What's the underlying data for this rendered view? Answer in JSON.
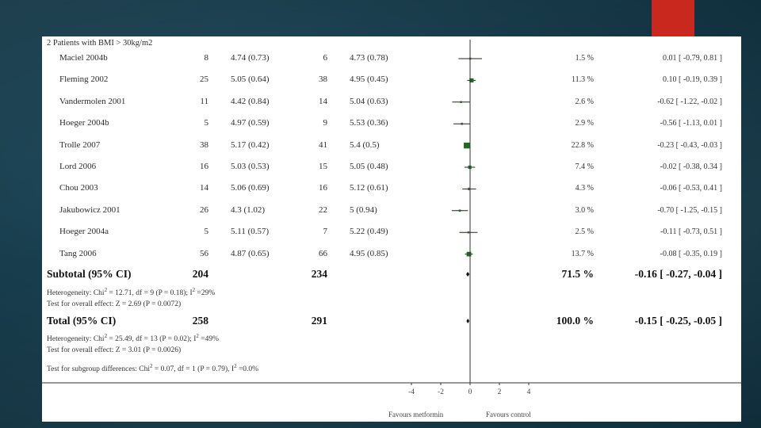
{
  "slide": {
    "subgroup_heading": "2 Patients with BMI > 30kg/m2",
    "studies": [
      {
        "name": "Maciel 2004b",
        "n1": "8",
        "ms1": "4.74 (0.73)",
        "n2": "6",
        "ms2": "4.73 (0.78)",
        "weight": "1.5 %",
        "ci_text": "0.01 [ -0.79, 0.81 ]",
        "est": 0.01,
        "lo": -0.79,
        "hi": 0.81
      },
      {
        "name": "Fleming 2002",
        "n1": "25",
        "ms1": "5.05 (0.64)",
        "n2": "38",
        "ms2": "4.95 (0.45)",
        "weight": "11.3 %",
        "ci_text": "0.10 [ -0.19, 0.39 ]",
        "est": 0.1,
        "lo": -0.19,
        "hi": 0.39
      },
      {
        "name": "Vandermolen 2001",
        "n1": "11",
        "ms1": "4.42 (0.84)",
        "n2": "14",
        "ms2": "5.04 (0.63)",
        "weight": "2.6 %",
        "ci_text": "-0.62 [ -1.22, -0.02 ]",
        "est": -0.62,
        "lo": -1.22,
        "hi": -0.02
      },
      {
        "name": "Hoeger 2004b",
        "n1": "5",
        "ms1": "4.97 (0.59)",
        "n2": "9",
        "ms2": "5.53 (0.36)",
        "weight": "2.9 %",
        "ci_text": "-0.56 [ -1.13, 0.01 ]",
        "est": -0.56,
        "lo": -1.13,
        "hi": 0.01
      },
      {
        "name": "Trolle 2007",
        "n1": "38",
        "ms1": "5.17 (0.42)",
        "n2": "41",
        "ms2": "5.4 (0.5)",
        "weight": "22.8 %",
        "ci_text": "-0.23 [ -0.43, -0.03 ]",
        "est": -0.23,
        "lo": -0.43,
        "hi": -0.03
      },
      {
        "name": "Lord 2006",
        "n1": "16",
        "ms1": "5.03 (0.53)",
        "n2": "15",
        "ms2": "5.05 (0.48)",
        "weight": "7.4 %",
        "ci_text": "-0.02 [ -0.38, 0.34 ]",
        "est": -0.02,
        "lo": -0.38,
        "hi": 0.34
      },
      {
        "name": "Chou 2003",
        "n1": "14",
        "ms1": "5.06 (0.69)",
        "n2": "16",
        "ms2": "5.12 (0.61)",
        "weight": "4.3 %",
        "ci_text": "-0.06 [ -0.53, 0.41 ]",
        "est": -0.06,
        "lo": -0.53,
        "hi": 0.41
      },
      {
        "name": "Jakubowicz 2001",
        "n1": "26",
        "ms1": "4.3 (1.02)",
        "n2": "22",
        "ms2": "5 (0.94)",
        "weight": "3.0 %",
        "ci_text": "-0.70 [ -1.25, -0.15 ]",
        "est": -0.7,
        "lo": -1.25,
        "hi": -0.15
      },
      {
        "name": "Hoeger 2004a",
        "n1": "5",
        "ms1": "5.11 (0.57)",
        "n2": "7",
        "ms2": "5.22 (0.49)",
        "weight": "2.5 %",
        "ci_text": "-0.11 [ -0.73, 0.51 ]",
        "est": -0.11,
        "lo": -0.73,
        "hi": 0.51
      },
      {
        "name": "Tang 2006",
        "n1": "56",
        "ms1": "4.87 (0.65)",
        "n2": "66",
        "ms2": "4.95 (0.85)",
        "weight": "13.7 %",
        "ci_text": "-0.08 [ -0.35, 0.19 ]",
        "est": -0.08,
        "lo": -0.35,
        "hi": 0.19
      }
    ],
    "subtotal": {
      "label": "Subtotal (95% CI)",
      "n1": "204",
      "n2": "234",
      "weight": "71.5 %",
      "ci_text": "-0.16 [ -0.27, -0.04 ]",
      "est": -0.16
    },
    "subtotal_heterogeneity_prefix": "Heterogeneity: Chi",
    "subtotal_heterogeneity": "= 12.71, df = 9 (P = 0.18); I",
    "subtotal_heterogeneity_end": "=29%",
    "subtotal_effect": "Test for overall effect: Z = 2.69 (P = 0.0072)",
    "total": {
      "label": "Total (95% CI)",
      "n1": "258",
      "n2": "291",
      "weight": "100.0 %",
      "ci_text": "-0.15 [ -0.25, -0.05 ]",
      "est": -0.15
    },
    "total_heterogeneity_prefix": "Heterogeneity: Chi",
    "total_heterogeneity": "= 25.49, df = 13 (P = 0.02); I",
    "total_heterogeneity_end": "=49%",
    "total_effect": "Test for overall effect: Z = 3.01 (P = 0.0026)",
    "subgroup_test_prefix": "Test for subgroup differences: Chi",
    "subgroup_test": "= 0.07, df = 1 (P = 0.79), I",
    "subgroup_test_end": "=0.0%",
    "sup2": "2",
    "axis_ticks": [
      "-4",
      "-2",
      "0",
      "2",
      "4"
    ],
    "favours_left": "Favours metformin",
    "favours_right": "Favours control"
  },
  "chart_data": {
    "type": "scatter",
    "x_range": [
      -4,
      4
    ],
    "ticks": [
      -4,
      -2,
      0,
      2,
      4
    ],
    "reference_line": 0,
    "xlabel_left": "Favours metformin",
    "xlabel_right": "Favours control"
  },
  "colors": {
    "marker": "#1d6b1d",
    "line": "#222222",
    "accent": "#c8281e"
  }
}
